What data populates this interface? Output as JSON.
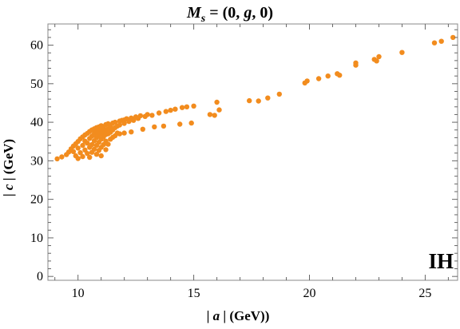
{
  "chart_data": {
    "type": "scatter",
    "title": "M_s = (0, g, 0)",
    "title_parts": [
      "M",
      "s",
      " = (0, ",
      "g",
      ", 0)"
    ],
    "xlabel": "| a | (GeV))",
    "xlabel_parts": [
      "| ",
      "a",
      " | (GeV))"
    ],
    "ylabel": "| c | (GeV)",
    "ylabel_parts": [
      "| ",
      "c",
      " | (GeV)"
    ],
    "annotation": "IH",
    "xlim": [
      8.7,
      26.4
    ],
    "ylim": [
      -1.0,
      65.5
    ],
    "xticks": [
      10,
      15,
      20,
      25
    ],
    "yticks": [
      0,
      10,
      20,
      30,
      40,
      50,
      60
    ],
    "grid": false,
    "marker_color": "#F28C1E",
    "points": [
      [
        9.1,
        30.5
      ],
      [
        9.3,
        31.0
      ],
      [
        9.5,
        31.6
      ],
      [
        9.6,
        32.3
      ],
      [
        9.7,
        33.1
      ],
      [
        9.8,
        33.8
      ],
      [
        9.8,
        32.4
      ],
      [
        9.9,
        34.4
      ],
      [
        9.9,
        31.3
      ],
      [
        10.0,
        35.0
      ],
      [
        10.0,
        33.3
      ],
      [
        10.0,
        30.6
      ],
      [
        10.1,
        35.7
      ],
      [
        10.1,
        32.1
      ],
      [
        10.2,
        36.2
      ],
      [
        10.2,
        34.0
      ],
      [
        10.2,
        31.1
      ],
      [
        10.3,
        36.7
      ],
      [
        10.3,
        35.1
      ],
      [
        10.3,
        32.8
      ],
      [
        10.4,
        37.1
      ],
      [
        10.4,
        34.6
      ],
      [
        10.4,
        31.9
      ],
      [
        10.5,
        37.6
      ],
      [
        10.5,
        35.8
      ],
      [
        10.5,
        33.5
      ],
      [
        10.5,
        30.9
      ],
      [
        10.6,
        38.0
      ],
      [
        10.6,
        36.4
      ],
      [
        10.6,
        34.2
      ],
      [
        10.6,
        32.2
      ],
      [
        10.7,
        38.3
      ],
      [
        10.7,
        37.0
      ],
      [
        10.7,
        35.2
      ],
      [
        10.7,
        33.0
      ],
      [
        10.8,
        38.6
      ],
      [
        10.8,
        37.5
      ],
      [
        10.8,
        36.0
      ],
      [
        10.8,
        34.0
      ],
      [
        10.8,
        31.7
      ],
      [
        10.9,
        38.8
      ],
      [
        10.9,
        37.8
      ],
      [
        10.9,
        36.6
      ],
      [
        10.9,
        34.8
      ],
      [
        10.9,
        32.7
      ],
      [
        11.0,
        39.1
      ],
      [
        11.0,
        38.2
      ],
      [
        11.0,
        37.1
      ],
      [
        11.0,
        35.6
      ],
      [
        11.0,
        33.5
      ],
      [
        11.0,
        31.3
      ],
      [
        11.1,
        38.6
      ],
      [
        11.1,
        37.4
      ],
      [
        11.1,
        36.2
      ],
      [
        11.1,
        34.2
      ],
      [
        11.2,
        39.4
      ],
      [
        11.2,
        38.0
      ],
      [
        11.2,
        36.8
      ],
      [
        11.2,
        35.1
      ],
      [
        11.2,
        32.9
      ],
      [
        11.3,
        39.6
      ],
      [
        11.3,
        38.3
      ],
      [
        11.3,
        37.0
      ],
      [
        11.3,
        34.3
      ],
      [
        11.4,
        39.0
      ],
      [
        11.4,
        37.4
      ],
      [
        11.4,
        35.6
      ],
      [
        11.5,
        39.8
      ],
      [
        11.5,
        38.0
      ],
      [
        11.5,
        36.1
      ],
      [
        11.6,
        40.0
      ],
      [
        11.6,
        38.6
      ],
      [
        11.6,
        36.5
      ],
      [
        11.7,
        39.0
      ],
      [
        11.7,
        37.2
      ],
      [
        11.8,
        40.3
      ],
      [
        11.8,
        39.3
      ],
      [
        11.8,
        37.0
      ],
      [
        11.9,
        40.5
      ],
      [
        12.0,
        40.6
      ],
      [
        12.0,
        39.7
      ],
      [
        12.0,
        37.2
      ],
      [
        12.1,
        40.9
      ],
      [
        12.2,
        40.2
      ],
      [
        12.3,
        41.1
      ],
      [
        12.3,
        37.5
      ],
      [
        12.4,
        40.5
      ],
      [
        12.5,
        41.4
      ],
      [
        12.6,
        41.0
      ],
      [
        12.7,
        41.7
      ],
      [
        12.8,
        38.2
      ],
      [
        12.9,
        41.5
      ],
      [
        13.0,
        42.0
      ],
      [
        13.2,
        41.8
      ],
      [
        13.3,
        38.8
      ],
      [
        13.5,
        42.4
      ],
      [
        13.7,
        39.0
      ],
      [
        13.8,
        42.8
      ],
      [
        14.0,
        43.1
      ],
      [
        14.2,
        43.4
      ],
      [
        14.4,
        39.5
      ],
      [
        14.5,
        43.8
      ],
      [
        14.7,
        44.0
      ],
      [
        14.9,
        39.8
      ],
      [
        15.0,
        44.2
      ],
      [
        15.7,
        42.0
      ],
      [
        15.9,
        41.8
      ],
      [
        16.0,
        45.2
      ],
      [
        16.1,
        43.2
      ],
      [
        17.4,
        45.6
      ],
      [
        17.8,
        45.5
      ],
      [
        18.2,
        46.3
      ],
      [
        18.7,
        47.3
      ],
      [
        19.8,
        50.2
      ],
      [
        19.9,
        50.7
      ],
      [
        20.4,
        51.3
      ],
      [
        20.8,
        52.0
      ],
      [
        21.2,
        52.6
      ],
      [
        21.3,
        52.2
      ],
      [
        22.0,
        54.8
      ],
      [
        22.0,
        55.4
      ],
      [
        22.8,
        56.3
      ],
      [
        22.9,
        55.9
      ],
      [
        23.0,
        57.0
      ],
      [
        24.0,
        58.1
      ],
      [
        25.4,
        60.6
      ],
      [
        25.7,
        61.0
      ],
      [
        26.2,
        62.0
      ]
    ]
  }
}
